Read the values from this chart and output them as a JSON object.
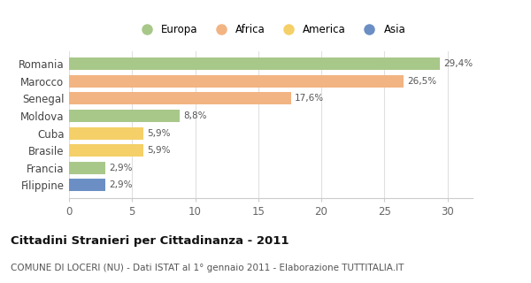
{
  "categories": [
    "Romania",
    "Marocco",
    "Senegal",
    "Moldova",
    "Cuba",
    "Brasile",
    "Francia",
    "Filippine"
  ],
  "values": [
    29.4,
    26.5,
    17.6,
    8.8,
    5.9,
    5.9,
    2.9,
    2.9
  ],
  "labels": [
    "29,4%",
    "26,5%",
    "17,6%",
    "8,8%",
    "5,9%",
    "5,9%",
    "2,9%",
    "2,9%"
  ],
  "colors": [
    "#a8c88a",
    "#f2b482",
    "#f2b482",
    "#a8c88a",
    "#f5d068",
    "#f5d068",
    "#a8c88a",
    "#6b8fc4"
  ],
  "legend": [
    {
      "label": "Europa",
      "color": "#a8c88a"
    },
    {
      "label": "Africa",
      "color": "#f2b482"
    },
    {
      "label": "America",
      "color": "#f5d068"
    },
    {
      "label": "Asia",
      "color": "#6b8fc4"
    }
  ],
  "xlim": [
    0,
    32
  ],
  "xticks": [
    0,
    5,
    10,
    15,
    20,
    25,
    30
  ],
  "title": "Cittadini Stranieri per Cittadinanza - 2011",
  "subtitle": "COMUNE DI LOCERI (NU) - Dati ISTAT al 1° gennaio 2011 - Elaborazione TUTTITALIA.IT",
  "title_fontsize": 9.5,
  "subtitle_fontsize": 7.5,
  "background_color": "#ffffff",
  "bar_height": 0.72
}
